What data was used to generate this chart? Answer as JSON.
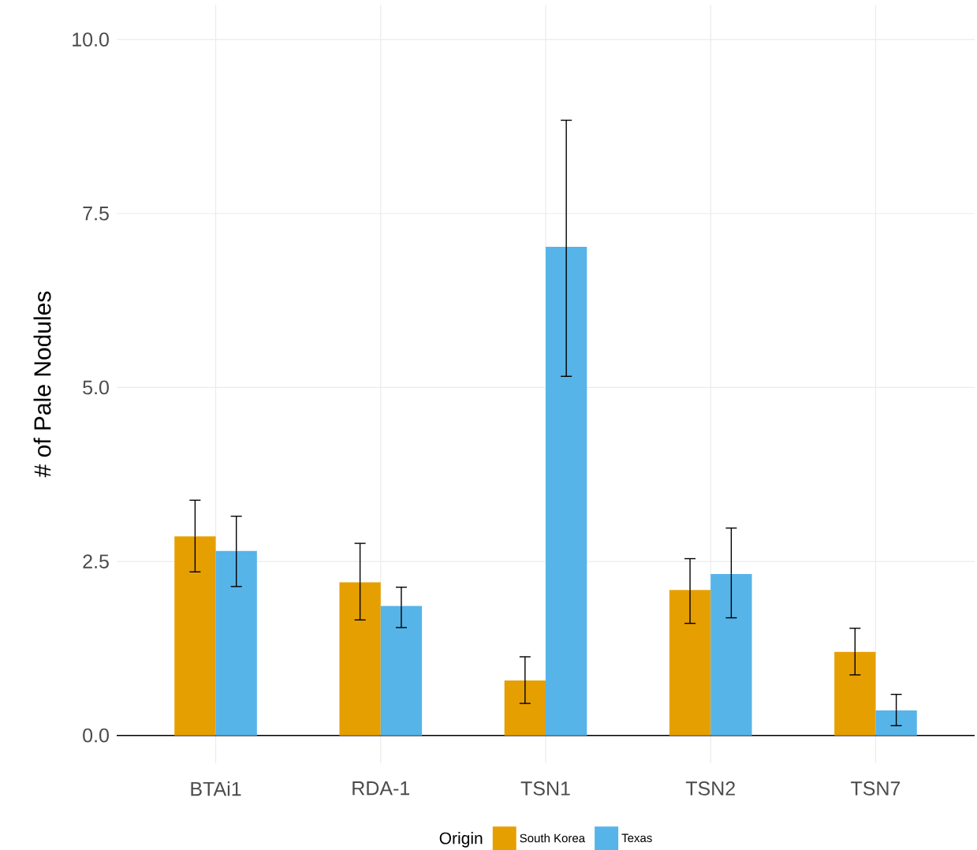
{
  "chart_data": {
    "type": "bar",
    "categories": [
      "BTAi1",
      "RDA-1",
      "TSN1",
      "TSN2",
      "TSN7"
    ],
    "series": [
      {
        "name": "South Korea",
        "color": "#e69f00",
        "values": [
          2.86,
          2.2,
          0.79,
          2.09,
          1.2
        ],
        "errors": [
          [
            2.35,
            3.38
          ],
          [
            1.66,
            2.76
          ],
          [
            0.46,
            1.13
          ],
          [
            1.61,
            2.54
          ],
          [
            0.87,
            1.54
          ]
        ]
      },
      {
        "name": "Texas",
        "color": "#56b4e9",
        "values": [
          2.65,
          1.86,
          7.02,
          2.32,
          0.36
        ],
        "errors": [
          [
            2.14,
            3.15
          ],
          [
            1.55,
            2.13
          ],
          [
            5.16,
            8.84
          ],
          [
            1.69,
            2.98
          ],
          [
            0.14,
            0.59
          ]
        ]
      }
    ],
    "ylabel": "# of Pale Nodules",
    "legend_title": "Origin",
    "legend": "bottom",
    "grid": true,
    "ylim": [
      -0.4,
      10.5
    ],
    "yticks": [
      {
        "value": 0,
        "label": "0.0"
      },
      {
        "value": 2.5,
        "label": "2.5"
      },
      {
        "value": 5,
        "label": "5.0"
      },
      {
        "value": 7.5,
        "label": "7.5"
      },
      {
        "value": 10,
        "label": "10.0"
      }
    ]
  }
}
